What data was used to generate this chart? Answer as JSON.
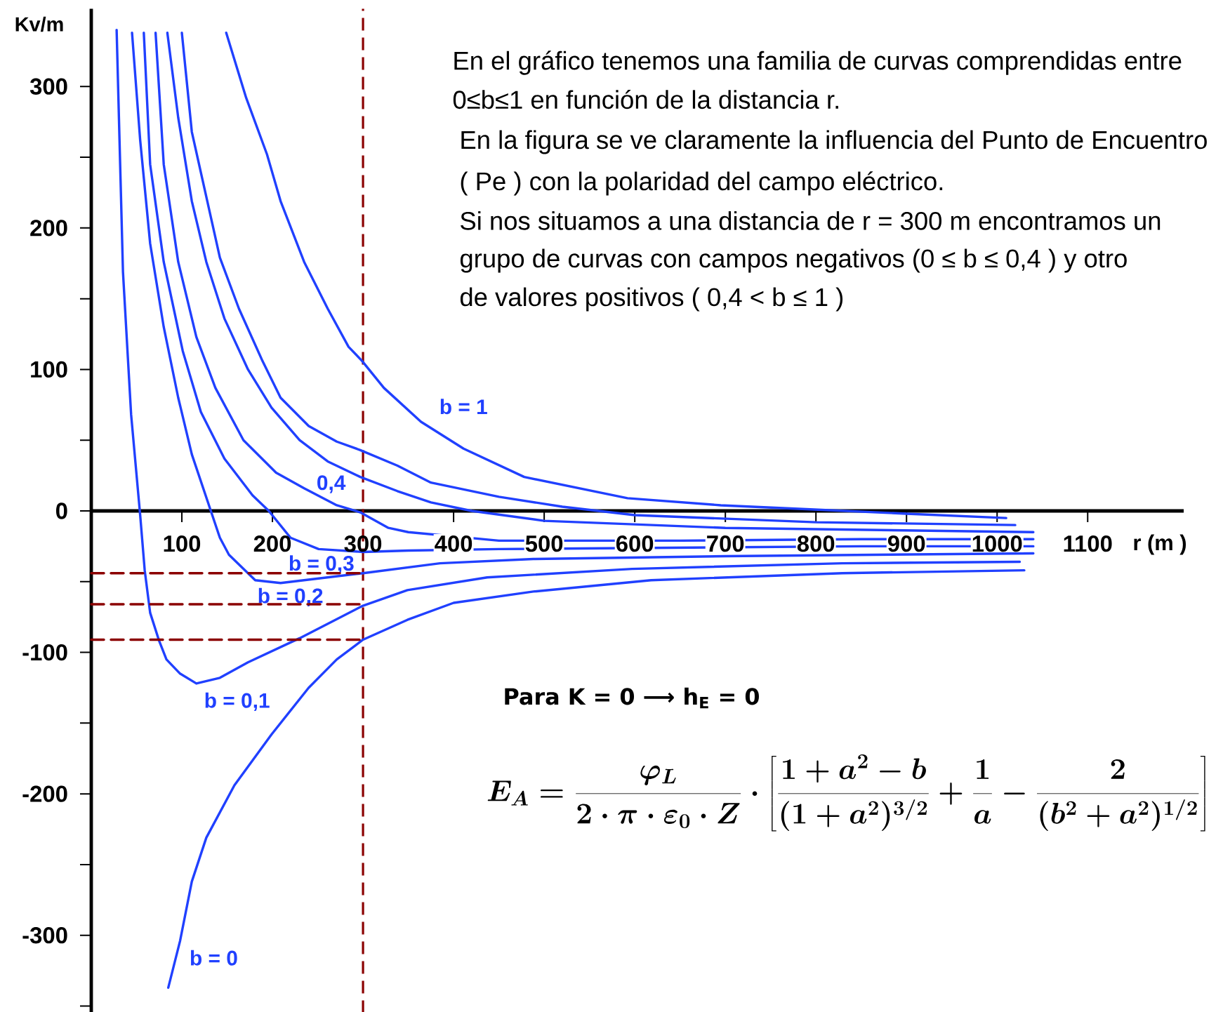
{
  "chart_data": {
    "type": "line",
    "annotations": [
      "En el gráfico tenemos una familia de curvas comprendidas entre",
      "0≤b≤1 en función de la distancia r.",
      "En la figura se ve claramente la influencia del Punto de Encuentro",
      "( Pe ) con la polaridad del campo eléctrico.",
      "Si nos situamos a una distancia de r = 300 m encontramos un",
      "grupo de curvas con campos negativos (0 ≤ b ≤ 0,4 ) y otro",
      "de valores positivos ( 0,4 < b ≤ 1 )",
      "Para K = 0 ⟶ h$_{E}$ = 0",
      "E_{A} = \\frac{\\varphi_{L}}{2\\cdot\\pi\\cdot\\varepsilon_{0}\\cdot Z}\\cdot\\left[\\frac{1+a^{2}-b}{(1+a^{2})^{3/2}} + \\frac{1}{a} - \\frac{2}{(b^{2}+a^{2})^{1/2}}\\right]"
    ],
    "xlabel": "r (m )",
    "ylabel": "Kv/m",
    "xlim": [
      0,
      1206
    ],
    "ylim": [
      -355,
      355
    ],
    "xticks": [
      100,
      200,
      300,
      400,
      500,
      600,
      700,
      800,
      900,
      1000,
      1100
    ],
    "yticks": [
      {
        "value": -350,
        "label": null
      },
      -300,
      {
        "value": -250,
        "label": null
      },
      -200,
      {
        "value": -150,
        "label": null
      },
      -100,
      {
        "value": -50,
        "label": null
      },
      0,
      {
        "value": 50,
        "label": null
      },
      100,
      {
        "value": 150,
        "label": null
      },
      200,
      {
        "value": 250,
        "label": null
      },
      300
    ],
    "series": [
      {
        "name": "b = 0",
        "color": "#2040ff",
        "x": [
          85,
          98,
          111,
          127,
          158,
          199,
          240,
          271,
          300,
          349,
          400,
          488,
          618,
          829,
          1030
        ],
        "values": [
          -337,
          -304,
          -262,
          -231,
          -194,
          -158,
          -125,
          -105,
          -91,
          -77,
          -65,
          -57,
          -49,
          -44,
          -42
        ]
      },
      {
        "name": "b = 0,1",
        "color": "#2040ff",
        "x": [
          28,
          35,
          44,
          54,
          59,
          65,
          75,
          83,
          98,
          116,
          142,
          173,
          230,
          300,
          349,
          437,
          597,
          829,
          1025
        ],
        "values": [
          340,
          169,
          68,
          -3,
          -42,
          -72,
          -92,
          -105,
          -115,
          -122,
          -118,
          -107,
          -90,
          -67,
          -56,
          -47,
          -41,
          -37,
          -36
        ]
      },
      {
        "name": "b = 0,2",
        "color": "#2040ff",
        "x": [
          45,
          54,
          65,
          80,
          96,
          111,
          132,
          142,
          152,
          181,
          209,
          261,
          300,
          385,
          488,
          700,
          1040
        ],
        "values": [
          338,
          262,
          189,
          130,
          80,
          40,
          0,
          -19,
          -31,
          -49,
          -51,
          -47,
          -44,
          -37,
          -34,
          -32,
          -30
        ]
      },
      {
        "name": "b = 0,3",
        "color": "#2040ff",
        "x": [
          58,
          65,
          80,
          101,
          121,
          147,
          178,
          196,
          220,
          251,
          300,
          350,
          450,
          650,
          850,
          1040
        ],
        "values": [
          338,
          245,
          176,
          113,
          70,
          37,
          11,
          0,
          -19,
          -27,
          -29,
          -28,
          -27,
          -26,
          -25,
          -25
        ]
      },
      {
        "name": "0,4",
        "color": "#2040ff",
        "x": [
          71,
          80,
          96,
          116,
          137,
          168,
          204,
          235,
          271,
          297,
          328,
          350,
          450,
          650,
          850,
          1040
        ],
        "values": [
          338,
          245,
          176,
          123,
          87,
          50,
          27,
          16,
          4,
          -1,
          -12,
          -15,
          -21,
          -21,
          -20,
          -20
        ]
      },
      {
        "color": "#2040ff",
        "x": [
          84,
          96,
          111,
          127,
          147,
          173,
          199,
          230,
          261,
          297,
          338,
          375,
          420,
          500,
          700,
          1040
        ],
        "values": [
          338,
          278,
          219,
          176,
          136,
          100,
          73,
          50,
          35,
          24,
          14,
          6,
          0,
          -7,
          -12,
          -15
        ]
      },
      {
        "color": "#2040ff",
        "x": [
          100,
          111,
          127,
          142,
          163,
          189,
          209,
          240,
          271,
          297,
          338,
          375,
          450,
          520,
          600,
          800,
          1020
        ],
        "values": [
          338,
          268,
          222,
          179,
          143,
          106,
          80,
          60,
          49,
          43,
          32,
          20,
          10,
          3,
          -3,
          -8,
          -10
        ]
      },
      {
        "name": "b = 1",
        "color": "#2040ff",
        "x": [
          149,
          171,
          194,
          209,
          235,
          261,
          284,
          299,
          323,
          364,
          411,
          478,
          592,
          695,
          798,
          900,
          1010
        ],
        "values": [
          338,
          292,
          252,
          219,
          176,
          143,
          116,
          106,
          87,
          63,
          44,
          24,
          9,
          4,
          1,
          -2,
          -5
        ]
      },
      {
        "color": "#8b0000",
        "line_style": "dashed",
        "x": [
          0,
          300
        ],
        "values": [
          -44,
          -44
        ]
      },
      {
        "color": "#8b0000",
        "line_style": "dashed",
        "x": [
          0,
          300
        ],
        "values": [
          -66,
          -66
        ]
      },
      {
        "color": "#8b0000",
        "line_style": "dashed",
        "x": [
          0,
          300
        ],
        "values": [
          -91,
          -91
        ]
      }
    ],
    "ref_lines": [
      {
        "axis": "x",
        "value": 300,
        "color": "#8b0000",
        "line_style": "dashed"
      }
    ]
  }
}
